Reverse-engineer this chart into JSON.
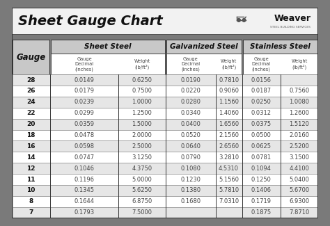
{
  "title": "Sheet Gauge Chart",
  "gauges": [
    "28",
    "26",
    "24",
    "22",
    "20",
    "18",
    "16",
    "14",
    "12",
    "11",
    "10",
    "8",
    "7"
  ],
  "sheet_steel_dec": [
    "0.0149",
    "0.0179",
    "0.0239",
    "0.0299",
    "0.0359",
    "0.0478",
    "0.0598",
    "0.0747",
    "0.1046",
    "0.1196",
    "0.1345",
    "0.1644",
    "0.1793"
  ],
  "sheet_steel_wt": [
    "0.6250",
    "0.7500",
    "1.0000",
    "1.2500",
    "1.5000",
    "2.0000",
    "2.5000",
    "3.1250",
    "4.3750",
    "5.0000",
    "5.6250",
    "6.8750",
    "7.5000"
  ],
  "galv_dec": [
    "0.0190",
    "0.0220",
    "0.0280",
    "0.0340",
    "0.0400",
    "0.0520",
    "0.0640",
    "0.0790",
    "0.1080",
    "0.1230",
    "0.1380",
    "0.1680",
    ""
  ],
  "galv_wt": [
    "0.7810",
    "0.9060",
    "1.1560",
    "1.4060",
    "1.6560",
    "2.1560",
    "2.6560",
    "3.2810",
    "4.5310",
    "5.1560",
    "5.7810",
    "7.0310",
    ""
  ],
  "stain_dec": [
    "0.0156",
    "0.0187",
    "0.0250",
    "0.0312",
    "0.0375",
    "0.0500",
    "0.0625",
    "0.0781",
    "0.1094",
    "0.1250",
    "0.1406",
    "0.1719",
    "0.1875"
  ],
  "stain_wt": [
    "",
    "0.7560",
    "1.0080",
    "1.2600",
    "1.5120",
    "2.0160",
    "2.5200",
    "3.1500",
    "4.4100",
    "5.0400",
    "5.6700",
    "6.9300",
    "7.8710"
  ],
  "outer_bg": "#7a7a7a",
  "inner_bg": "#ffffff",
  "title_bg": "#f2f2f2",
  "section_header_bg": "#c8c8c8",
  "row_odd_bg": "#e6e6e6",
  "row_even_bg": "#ffffff",
  "border_dark": "#333333",
  "border_med": "#888888",
  "text_dark": "#111111",
  "text_mid": "#444444"
}
